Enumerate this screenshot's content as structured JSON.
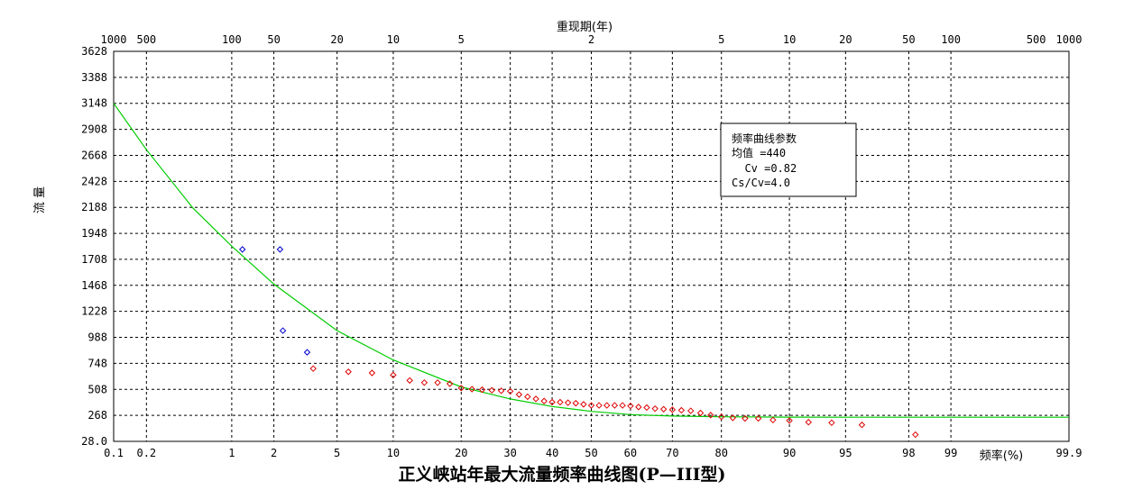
{
  "chart_data": {
    "type": "scatter",
    "title": "正义峡站年最大流量频率曲线图(P—III型)",
    "ylabel": "流  量",
    "xlabel": "频率(%)",
    "top_axis_label": "重现期(年)",
    "y_ticks": [
      "28.0",
      "268",
      "508",
      "748",
      "988",
      "1228",
      "1468",
      "1708",
      "1948",
      "2188",
      "2428",
      "2668",
      "2908",
      "3148",
      "3388",
      "3628"
    ],
    "ylim": [
      28,
      3628
    ],
    "x_ticks": [
      {
        "p": 0.1,
        "label": "0.1"
      },
      {
        "p": 0.2,
        "label": "0.2"
      },
      {
        "p": 1,
        "label": "1"
      },
      {
        "p": 2,
        "label": "2"
      },
      {
        "p": 5,
        "label": "5"
      },
      {
        "p": 10,
        "label": "10"
      },
      {
        "p": 20,
        "label": "20"
      },
      {
        "p": 30,
        "label": "30"
      },
      {
        "p": 40,
        "label": "40"
      },
      {
        "p": 50,
        "label": "50"
      },
      {
        "p": 60,
        "label": "60"
      },
      {
        "p": 70,
        "label": "70"
      },
      {
        "p": 80,
        "label": "80"
      },
      {
        "p": 90,
        "label": "90"
      },
      {
        "p": 95,
        "label": "95"
      },
      {
        "p": 98,
        "label": "98"
      },
      {
        "p": 99,
        "label": "99"
      },
      {
        "p": 99.9,
        "label": "99.9"
      }
    ],
    "top_ticks": [
      {
        "p": 0.1,
        "label": "1000"
      },
      {
        "p": 0.2,
        "label": "500"
      },
      {
        "p": 1,
        "label": "100"
      },
      {
        "p": 2,
        "label": "50"
      },
      {
        "p": 5,
        "label": "20"
      },
      {
        "p": 10,
        "label": "10"
      },
      {
        "p": 20,
        "label": "5"
      },
      {
        "p": 50,
        "label": "2"
      },
      {
        "p": 80,
        "label": "5"
      },
      {
        "p": 90,
        "label": "10"
      },
      {
        "p": 95,
        "label": "20"
      },
      {
        "p": 98,
        "label": "50"
      },
      {
        "p": 99,
        "label": "100"
      },
      {
        "p": 99.8,
        "label": "500"
      },
      {
        "p": 99.9,
        "label": "1000"
      }
    ],
    "grid": true,
    "params_box": {
      "title": "频率曲线参数",
      "line1": "均值 =440",
      "line2": "  Cv =0.82",
      "line3": "Cs/Cv=4.0"
    },
    "series": [
      {
        "type": "scatter",
        "color": "#0000cc",
        "marker": "diamond",
        "points": [
          [
            1.2,
            1800
          ],
          [
            2.2,
            1800
          ],
          [
            2.3,
            1050
          ],
          [
            3.3,
            850
          ]
        ]
      },
      {
        "type": "scatter",
        "color": "#e00000",
        "marker": "diamond",
        "points": [
          [
            3.6,
            700
          ],
          [
            5.8,
            670
          ],
          [
            7.8,
            660
          ],
          [
            10,
            640
          ],
          [
            12,
            590
          ],
          [
            14,
            570
          ],
          [
            16,
            570
          ],
          [
            18,
            560
          ],
          [
            20,
            520
          ],
          [
            22,
            510
          ],
          [
            24,
            505
          ],
          [
            26,
            500
          ],
          [
            28,
            495
          ],
          [
            30,
            490
          ],
          [
            32,
            460
          ],
          [
            34,
            440
          ],
          [
            36,
            420
          ],
          [
            38,
            400
          ],
          [
            40,
            390
          ],
          [
            42,
            390
          ],
          [
            44,
            385
          ],
          [
            46,
            380
          ],
          [
            48,
            370
          ],
          [
            50,
            360
          ],
          [
            52,
            360
          ],
          [
            54,
            360
          ],
          [
            56,
            360
          ],
          [
            58,
            360
          ],
          [
            60,
            355
          ],
          [
            62,
            345
          ],
          [
            64,
            340
          ],
          [
            66,
            330
          ],
          [
            68,
            325
          ],
          [
            70,
            320
          ],
          [
            72,
            315
          ],
          [
            74,
            310
          ],
          [
            76,
            290
          ],
          [
            78,
            270
          ],
          [
            80,
            255
          ],
          [
            82,
            245
          ],
          [
            84,
            240
          ],
          [
            86,
            240
          ],
          [
            88,
            225
          ],
          [
            90,
            220
          ],
          [
            92,
            205
          ],
          [
            94,
            200
          ],
          [
            96,
            180
          ],
          [
            98.2,
            90
          ]
        ]
      },
      {
        "type": "line",
        "color": "#00cc00",
        "points": [
          [
            0.1,
            3148
          ],
          [
            0.2,
            2720
          ],
          [
            0.5,
            2180
          ],
          [
            1,
            1830
          ],
          [
            2,
            1480
          ],
          [
            5,
            1050
          ],
          [
            10,
            780
          ],
          [
            20,
            530
          ],
          [
            30,
            420
          ],
          [
            40,
            350
          ],
          [
            50,
            305
          ],
          [
            60,
            275
          ],
          [
            70,
            262
          ],
          [
            80,
            255
          ],
          [
            90,
            252
          ],
          [
            95,
            251
          ],
          [
            99,
            251
          ],
          [
            99.9,
            251
          ]
        ]
      }
    ]
  }
}
